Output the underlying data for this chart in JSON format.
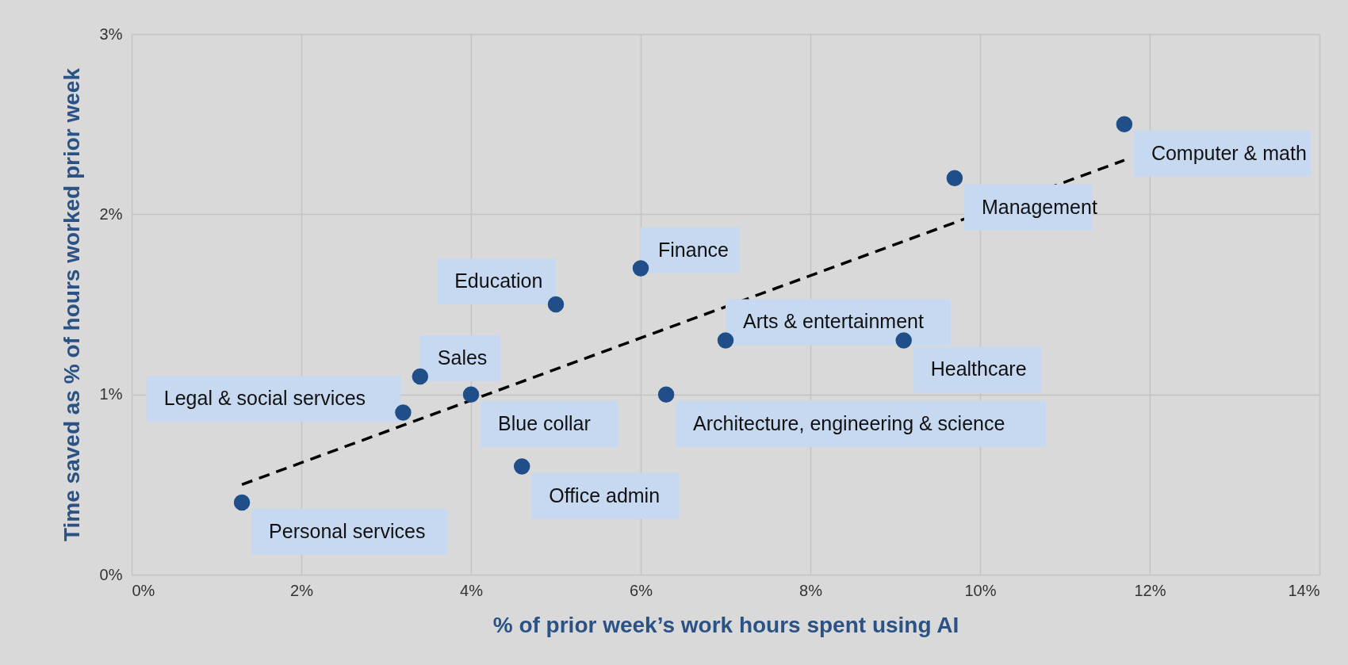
{
  "chart_data": {
    "type": "scatter",
    "xlabel": "% of prior week’s work hours spent using AI",
    "ylabel": "Time saved as % of hours worked prior week",
    "xlim": [
      0,
      14
    ],
    "ylim": [
      0,
      3
    ],
    "xticks": [
      {
        "value": 0,
        "label": "0%"
      },
      {
        "value": 2,
        "label": "2%"
      },
      {
        "value": 4,
        "label": "4%"
      },
      {
        "value": 6,
        "label": "6%"
      },
      {
        "value": 8,
        "label": "8%"
      },
      {
        "value": 10,
        "label": "10%"
      },
      {
        "value": 12,
        "label": "12%"
      },
      {
        "value": 14,
        "label": "14%"
      }
    ],
    "yticks": [
      {
        "value": 0,
        "label": "0%"
      },
      {
        "value": 1,
        "label": "1%"
      },
      {
        "value": 2,
        "label": "2%"
      },
      {
        "value": 3,
        "label": "3%"
      }
    ],
    "grid": true,
    "marker": "circle",
    "series": [
      {
        "type": "scatter",
        "color": "#1f4e89",
        "x": [
          11.7,
          9.7,
          6.0,
          5.0,
          7.0,
          9.1,
          3.4,
          3.2,
          4.0,
          6.3,
          4.6,
          1.3
        ],
        "values": [
          2.5,
          2.2,
          1.7,
          1.5,
          1.3,
          1.3,
          1.1,
          0.9,
          1.0,
          1.0,
          0.6,
          0.4
        ]
      },
      {
        "type": "line",
        "color": "#000000",
        "line_style": "dashed",
        "marker": "none",
        "x": [
          1.3,
          11.7
        ],
        "values": [
          0.5,
          2.3
        ]
      }
    ],
    "annotations": [
      {
        "text": "Computer & math",
        "x": 11.7,
        "y": 2.5
      },
      {
        "text": "Management",
        "x": 9.7,
        "y": 2.2
      },
      {
        "text": "Finance",
        "x": 6.0,
        "y": 1.7
      },
      {
        "text": "Education",
        "x": 5.0,
        "y": 1.5
      },
      {
        "text": "Arts & entertainment",
        "x": 7.0,
        "y": 1.3
      },
      {
        "text": "Healthcare",
        "x": 9.1,
        "y": 1.3
      },
      {
        "text": "Sales",
        "x": 3.4,
        "y": 1.1
      },
      {
        "text": "Legal & social services",
        "x": 3.2,
        "y": 0.9
      },
      {
        "text": "Blue collar",
        "x": 4.0,
        "y": 1.0
      },
      {
        "text": "Architecture, engineering & science",
        "x": 6.3,
        "y": 1.0
      },
      {
        "text": "Office admin",
        "x": 4.6,
        "y": 0.6
      },
      {
        "text": "Personal services",
        "x": 1.3,
        "y": 0.4
      }
    ]
  }
}
